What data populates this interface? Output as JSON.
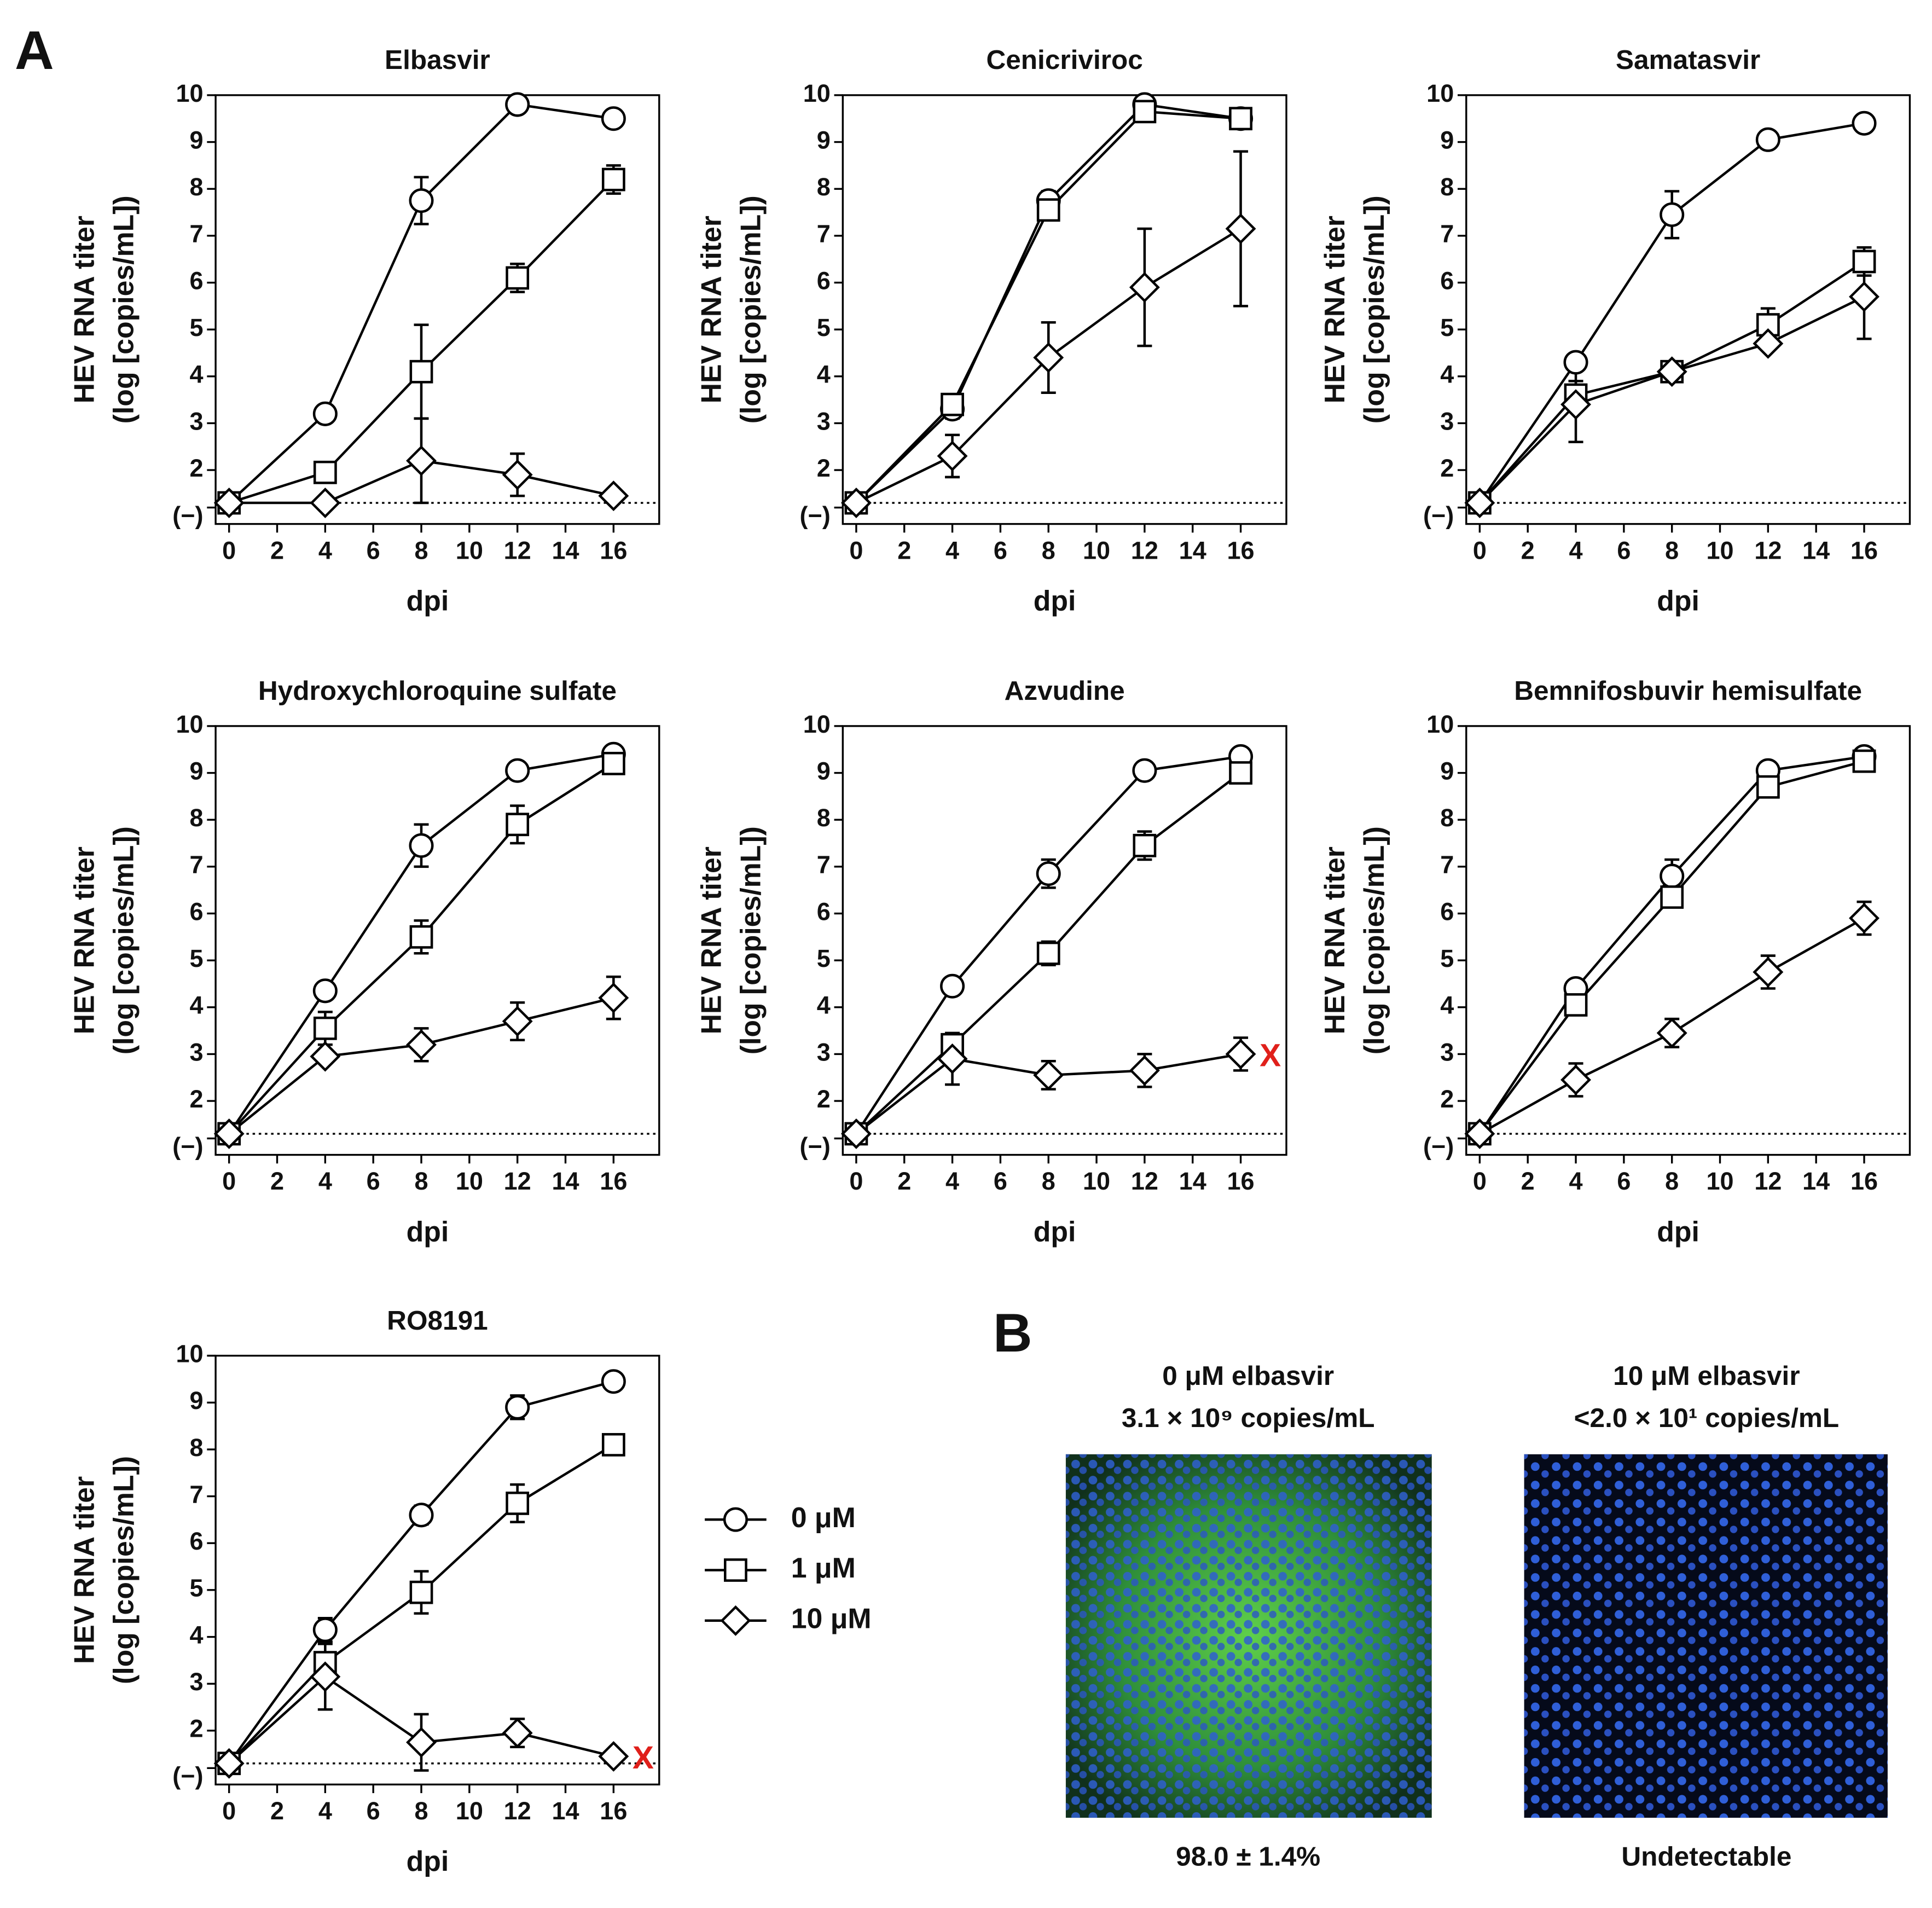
{
  "panel_labels": [
    "A",
    "B"
  ],
  "chart_data": [
    {
      "type": "line",
      "title": "Elbasvir",
      "xlabel": "dpi",
      "ylabel": [
        "HEV RNA titer",
        "(log [copies/mL])"
      ],
      "x": [
        0,
        4,
        8,
        12,
        16
      ],
      "xlim": [
        -0.56,
        17.9
      ],
      "xticks": [
        0,
        2,
        4,
        6,
        8,
        10,
        12,
        14,
        16
      ],
      "ylim": [
        0.85,
        10
      ],
      "yticks": [
        {
          "value": 1.2,
          "label": "(−)"
        },
        2,
        3,
        4,
        5,
        6,
        7,
        8,
        9,
        10
      ],
      "detection_limit": 1.3,
      "series": [
        {
          "name": "0 μM",
          "marker": "circle",
          "color": "#000000",
          "values": [
            1.3,
            3.2,
            7.75,
            9.8,
            9.5
          ],
          "errors": [
            0.1,
            0.1,
            0.5,
            0.1,
            0.1
          ]
        },
        {
          "name": "1 μM",
          "marker": "square",
          "color": "#000000",
          "values": [
            1.3,
            1.95,
            4.1,
            6.1,
            8.2
          ],
          "errors": [
            0.1,
            0.2,
            1.0,
            0.3,
            0.3
          ]
        },
        {
          "name": "10 μM",
          "marker": "diamond",
          "color": "#000000",
          "values": [
            1.3,
            1.3,
            2.2,
            1.9,
            1.45
          ],
          "errors": [
            0.1,
            0.1,
            0.9,
            0.45,
            0.1
          ]
        }
      ]
    },
    {
      "type": "line",
      "title": "Cenicriviroc",
      "xlabel": "dpi",
      "ylabel": [
        "HEV RNA titer",
        "(log [copies/mL])"
      ],
      "x": [
        0,
        4,
        8,
        12,
        16
      ],
      "xlim": [
        -0.56,
        17.9
      ],
      "xticks": [
        0,
        2,
        4,
        6,
        8,
        10,
        12,
        14,
        16
      ],
      "ylim": [
        0.85,
        10
      ],
      "yticks": [
        {
          "value": 1.2,
          "label": "(−)"
        },
        2,
        3,
        4,
        5,
        6,
        7,
        8,
        9,
        10
      ],
      "detection_limit": 1.3,
      "series": [
        {
          "name": "0 μM",
          "marker": "circle",
          "color": "#000000",
          "values": [
            1.3,
            3.3,
            7.75,
            9.8,
            9.5
          ],
          "errors": [
            0.1,
            0.2,
            0.2,
            0.1,
            0.1
          ]
        },
        {
          "name": "1 μM",
          "marker": "square",
          "color": "#000000",
          "values": [
            1.3,
            3.4,
            7.55,
            9.65,
            9.5
          ],
          "errors": [
            0.1,
            0.2,
            0.2,
            0.1,
            0.1
          ]
        },
        {
          "name": "10 μM",
          "marker": "diamond",
          "color": "#000000",
          "values": [
            1.3,
            2.3,
            4.4,
            5.9,
            7.15
          ],
          "errors": [
            0.1,
            0.45,
            0.75,
            1.25,
            1.65
          ]
        }
      ]
    },
    {
      "type": "line",
      "title": "Samatasvir",
      "xlabel": "dpi",
      "ylabel": [
        "HEV RNA titer",
        "(log [copies/mL])"
      ],
      "x": [
        0,
        4,
        8,
        12,
        16
      ],
      "xlim": [
        -0.56,
        17.9
      ],
      "xticks": [
        0,
        2,
        4,
        6,
        8,
        10,
        12,
        14,
        16
      ],
      "ylim": [
        0.85,
        10
      ],
      "yticks": [
        {
          "value": 1.2,
          "label": "(−)"
        },
        2,
        3,
        4,
        5,
        6,
        7,
        8,
        9,
        10
      ],
      "detection_limit": 1.3,
      "series": [
        {
          "name": "0 μM",
          "marker": "circle",
          "color": "#000000",
          "values": [
            1.3,
            4.3,
            7.45,
            9.05,
            9.4
          ],
          "errors": [
            0.1,
            0.15,
            0.5,
            0.1,
            0.1
          ]
        },
        {
          "name": "1 μM",
          "marker": "square",
          "color": "#000000",
          "values": [
            1.3,
            3.6,
            4.1,
            5.1,
            6.45
          ],
          "errors": [
            0.1,
            0.3,
            0.2,
            0.35,
            0.3
          ]
        },
        {
          "name": "10 μM",
          "marker": "diamond",
          "color": "#000000",
          "values": [
            1.3,
            3.4,
            4.1,
            4.7,
            5.7
          ],
          "errors": [
            0.1,
            0.8,
            0.2,
            0.1,
            0.9
          ]
        }
      ]
    },
    {
      "type": "line",
      "title": "Hydroxychloroquine sulfate",
      "xlabel": "dpi",
      "ylabel": [
        "HEV RNA titer",
        "(log [copies/mL])"
      ],
      "x": [
        0,
        4,
        8,
        12,
        16
      ],
      "xlim": [
        -0.56,
        17.9
      ],
      "xticks": [
        0,
        2,
        4,
        6,
        8,
        10,
        12,
        14,
        16
      ],
      "ylim": [
        0.85,
        10
      ],
      "yticks": [
        {
          "value": 1.2,
          "label": "(−)"
        },
        2,
        3,
        4,
        5,
        6,
        7,
        8,
        9,
        10
      ],
      "detection_limit": 1.3,
      "series": [
        {
          "name": "0 μM",
          "marker": "circle",
          "color": "#000000",
          "values": [
            1.3,
            4.35,
            7.45,
            9.05,
            9.4
          ],
          "errors": [
            0.1,
            0.1,
            0.45,
            0.1,
            0.1
          ]
        },
        {
          "name": "1 μM",
          "marker": "square",
          "color": "#000000",
          "values": [
            1.3,
            3.55,
            5.5,
            7.9,
            9.2
          ],
          "errors": [
            0.1,
            0.35,
            0.35,
            0.4,
            0.15
          ]
        },
        {
          "name": "10 μM",
          "marker": "diamond",
          "color": "#000000",
          "values": [
            1.3,
            2.95,
            3.2,
            3.7,
            4.2
          ],
          "errors": [
            0.1,
            0.1,
            0.35,
            0.4,
            0.45
          ]
        }
      ]
    },
    {
      "type": "line",
      "title": "Azvudine",
      "xlabel": "dpi",
      "ylabel": [
        "HEV RNA titer",
        "(log [copies/mL])"
      ],
      "x": [
        0,
        4,
        8,
        12,
        16
      ],
      "xlim": [
        -0.56,
        17.9
      ],
      "xticks": [
        0,
        2,
        4,
        6,
        8,
        10,
        12,
        14,
        16
      ],
      "ylim": [
        0.85,
        10
      ],
      "yticks": [
        {
          "value": 1.2,
          "label": "(−)"
        },
        2,
        3,
        4,
        5,
        6,
        7,
        8,
        9,
        10
      ],
      "detection_limit": 1.3,
      "annotation": {
        "text": "X",
        "color": "#e0201b"
      },
      "series": [
        {
          "name": "0 μM",
          "marker": "circle",
          "color": "#000000",
          "values": [
            1.3,
            4.45,
            6.85,
            9.05,
            9.35
          ],
          "errors": [
            0.1,
            0.1,
            0.3,
            0.1,
            0.1
          ]
        },
        {
          "name": "1 μM",
          "marker": "square",
          "color": "#000000",
          "values": [
            1.3,
            3.2,
            5.15,
            7.45,
            9.0
          ],
          "errors": [
            0.1,
            0.15,
            0.25,
            0.3,
            0.15
          ]
        },
        {
          "name": "10 μM",
          "marker": "diamond",
          "color": "#000000",
          "values": [
            1.3,
            2.9,
            2.55,
            2.65,
            3.0
          ],
          "errors": [
            0.1,
            0.55,
            0.3,
            0.35,
            0.35
          ]
        }
      ]
    },
    {
      "type": "line",
      "title": "Bemnifosbuvir hemisulfate",
      "xlabel": "dpi",
      "ylabel": [
        "HEV RNA titer",
        "(log [copies/mL])"
      ],
      "x": [
        0,
        4,
        8,
        12,
        16
      ],
      "xlim": [
        -0.56,
        17.9
      ],
      "xticks": [
        0,
        2,
        4,
        6,
        8,
        10,
        12,
        14,
        16
      ],
      "ylim": [
        0.85,
        10
      ],
      "yticks": [
        {
          "value": 1.2,
          "label": "(−)"
        },
        2,
        3,
        4,
        5,
        6,
        7,
        8,
        9,
        10
      ],
      "detection_limit": 1.3,
      "series": [
        {
          "name": "0 μM",
          "marker": "circle",
          "color": "#000000",
          "values": [
            1.3,
            4.4,
            6.8,
            9.05,
            9.35
          ],
          "errors": [
            0.1,
            0.1,
            0.35,
            0.1,
            0.1
          ]
        },
        {
          "name": "1 μM",
          "marker": "square",
          "color": "#000000",
          "values": [
            1.3,
            4.05,
            6.35,
            8.7,
            9.25
          ],
          "errors": [
            0.1,
            0.2,
            0.2,
            0.15,
            0.1
          ]
        },
        {
          "name": "10 μM",
          "marker": "diamond",
          "color": "#000000",
          "values": [
            1.3,
            2.45,
            3.45,
            4.75,
            5.9
          ],
          "errors": [
            0.1,
            0.35,
            0.3,
            0.35,
            0.35
          ]
        }
      ]
    },
    {
      "type": "line",
      "title": "RO8191",
      "xlabel": "dpi",
      "ylabel": [
        "HEV RNA titer",
        "(log [copies/mL])"
      ],
      "x": [
        0,
        4,
        8,
        12,
        16
      ],
      "xlim": [
        -0.56,
        17.9
      ],
      "xticks": [
        0,
        2,
        4,
        6,
        8,
        10,
        12,
        14,
        16
      ],
      "ylim": [
        0.85,
        10
      ],
      "yticks": [
        {
          "value": 1.2,
          "label": "(−)"
        },
        2,
        3,
        4,
        5,
        6,
        7,
        8,
        9,
        10
      ],
      "detection_limit": 1.3,
      "annotation": {
        "text": "X",
        "color": "#e0201b"
      },
      "series": [
        {
          "name": "0 μM",
          "marker": "circle",
          "color": "#000000",
          "values": [
            1.3,
            4.15,
            6.6,
            8.9,
            9.45
          ],
          "errors": [
            0.1,
            0.25,
            0.2,
            0.25,
            0.1
          ]
        },
        {
          "name": "1 μM",
          "marker": "square",
          "color": "#000000",
          "values": [
            1.3,
            3.45,
            4.95,
            6.85,
            8.1
          ],
          "errors": [
            0.1,
            0.1,
            0.45,
            0.4,
            0.15
          ]
        },
        {
          "name": "10 μM",
          "marker": "diamond",
          "color": "#000000",
          "values": [
            1.3,
            3.15,
            1.75,
            1.95,
            1.45
          ],
          "errors": [
            0.1,
            0.7,
            0.6,
            0.3,
            0.1
          ]
        }
      ]
    }
  ],
  "images": [
    {
      "title": "0 μM elbasvir",
      "titer": "3.1 × 10⁹ copies/mL",
      "result": "98.0 ± 1.4%"
    },
    {
      "title": "10 μM elbasvir",
      "titer": "<2.0 × 10¹ copies/mL",
      "result": "Undetectable"
    }
  ]
}
